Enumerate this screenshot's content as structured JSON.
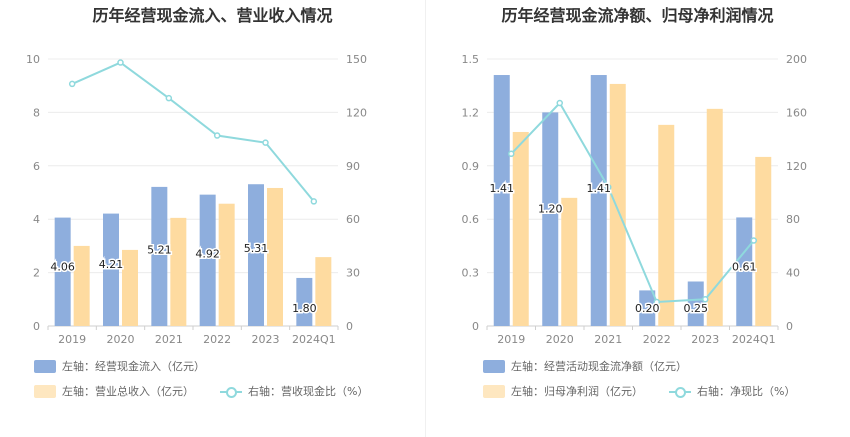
{
  "charts": [
    {
      "title": "历年经营现金流入、营业收入情况",
      "legend": [
        {
          "label": "左轴：经营现金流入（亿元）",
          "type": "bar",
          "color": "#8eaedd"
        },
        {
          "label": "左轴：营业总收入（亿元）",
          "type": "bar",
          "color": "#fedba0"
        },
        {
          "label": "右轴：营收现金比（%）",
          "type": "line",
          "color": "#8fd9dd"
        }
      ]
    },
    {
      "title": "历年经营现金流净额、归母净利润情况",
      "legend": [
        {
          "label": "左轴：经营活动现金流净额（亿元）",
          "type": "bar",
          "color": "#8eaedd"
        },
        {
          "label": "左轴：归母净利润（亿元）",
          "type": "bar",
          "color": "#fedba0"
        },
        {
          "label": "右轴：净现比（%）",
          "type": "line",
          "color": "#8fd9dd"
        }
      ]
    }
  ],
  "chart_data": [
    {
      "type": "bar",
      "title": "历年经营现金流入、营业收入情况",
      "categories": [
        "2019",
        "2020",
        "2021",
        "2022",
        "2023",
        "2024Q1"
      ],
      "y_left": {
        "min": 0,
        "max": 10,
        "ticks": [
          0,
          2,
          4,
          6,
          8,
          10
        ],
        "tick_labels": [
          "0",
          "2",
          "4",
          "6",
          "8",
          "10"
        ]
      },
      "y_right": {
        "min": 0,
        "max": 150,
        "ticks": [
          0,
          30,
          60,
          90,
          120,
          150
        ],
        "tick_labels": [
          "0",
          "30",
          "60",
          "90",
          "120",
          "150"
        ]
      },
      "grid": true,
      "series": [
        {
          "name": "左轴：经营现金流入（亿元）",
          "type": "bar",
          "axis": "left",
          "color": "#8eaedd",
          "values": [
            4.06,
            4.21,
            5.21,
            4.92,
            5.31,
            1.8
          ],
          "data_labels": [
            "4.06",
            "4.21",
            "5.21",
            "4.92",
            "5.31",
            "1.80"
          ]
        },
        {
          "name": "左轴：营业总收入（亿元）",
          "type": "bar",
          "axis": "left",
          "color": "#fedba0",
          "values": [
            3.0,
            2.85,
            4.05,
            4.58,
            5.17,
            2.58
          ]
        },
        {
          "name": "右轴：营收现金比（%）",
          "type": "line",
          "axis": "right",
          "color": "#8fd9dd",
          "values": [
            136,
            148,
            128,
            107,
            103,
            70
          ]
        }
      ],
      "legend_position": "bottom-left"
    },
    {
      "type": "bar",
      "title": "历年经营现金流净额、归母净利润情况",
      "categories": [
        "2019",
        "2020",
        "2021",
        "2022",
        "2023",
        "2024Q1"
      ],
      "y_left": {
        "min": 0,
        "max": 1.5,
        "ticks": [
          0,
          0.3,
          0.6,
          0.9,
          1.2,
          1.5
        ],
        "tick_labels": [
          "0",
          "0.3",
          "0.6",
          "0.9",
          "1.2",
          "1.5"
        ]
      },
      "y_right": {
        "min": 0,
        "max": 200,
        "ticks": [
          0,
          40,
          80,
          120,
          160,
          200
        ],
        "tick_labels": [
          "0",
          "40",
          "80",
          "120",
          "160",
          "200"
        ]
      },
      "grid": true,
      "series": [
        {
          "name": "左轴：经营活动现金流净额（亿元）",
          "type": "bar",
          "axis": "left",
          "color": "#8eaedd",
          "values": [
            1.41,
            1.2,
            1.41,
            0.2,
            0.25,
            0.61
          ],
          "data_labels": [
            "1.41",
            "1.20",
            "1.41",
            "0.20",
            "0.25",
            "0.61"
          ]
        },
        {
          "name": "左轴：归母净利润（亿元）",
          "type": "bar",
          "axis": "left",
          "color": "#fedba0",
          "values": [
            1.09,
            0.72,
            1.36,
            1.13,
            1.22,
            0.95
          ]
        },
        {
          "name": "右轴：净现比（%）",
          "type": "line",
          "axis": "right",
          "color": "#8fd9dd",
          "values": [
            129,
            167,
            104,
            18,
            20,
            64
          ]
        }
      ],
      "legend_position": "bottom-left"
    }
  ]
}
